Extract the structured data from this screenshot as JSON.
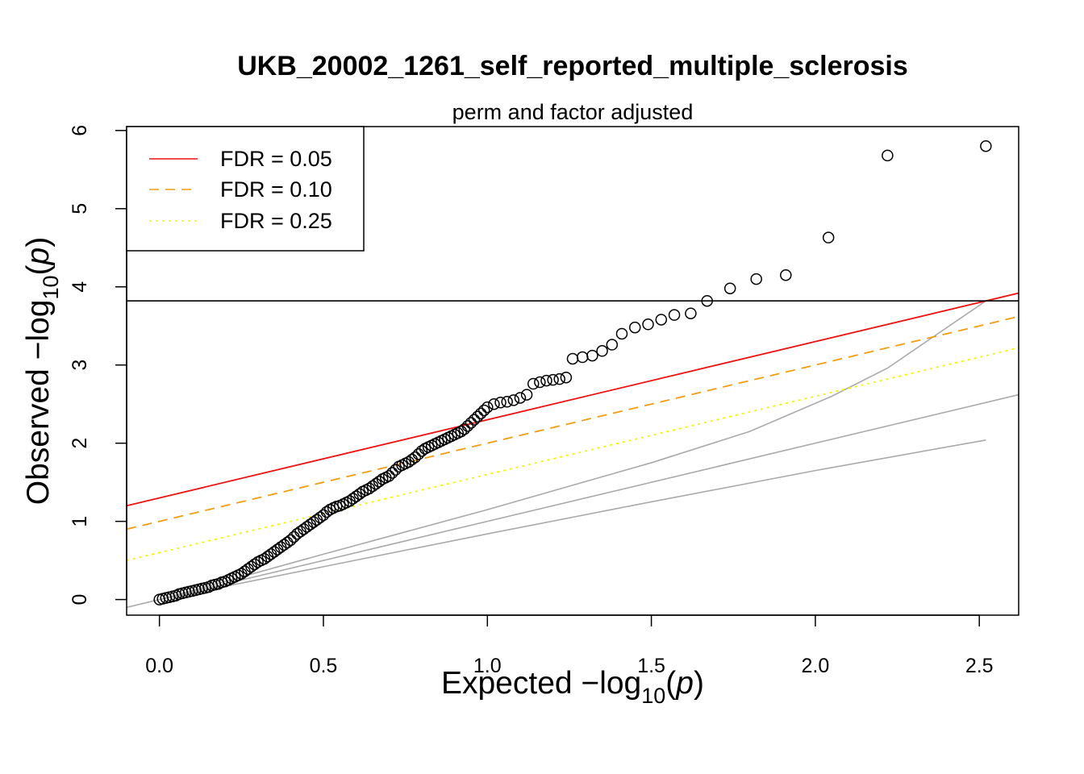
{
  "chart_data": {
    "type": "scatter",
    "title": "UKB_20002_1261_self_reported_multiple_sclerosis",
    "subtitle": "perm and factor adjusted",
    "xlabel": {
      "prefix": "Expected  −log",
      "sub": "10",
      "open": "(",
      "var": "p",
      "close": ")"
    },
    "ylabel": {
      "prefix": "Observed  −log",
      "sub": "10",
      "open": "(",
      "var": "p",
      "close": ")"
    },
    "xlim": [
      -0.1,
      2.62
    ],
    "ylim": [
      -0.2,
      6.05
    ],
    "xticks": [
      0.0,
      0.5,
      1.0,
      1.5,
      2.0,
      2.5
    ],
    "xtick_labels": [
      "0.0",
      "0.5",
      "1.0",
      "1.5",
      "2.0",
      "2.5"
    ],
    "yticks": [
      0,
      1,
      2,
      3,
      4,
      5,
      6
    ],
    "ytick_labels": [
      "0",
      "1",
      "2",
      "3",
      "4",
      "5",
      "6"
    ],
    "grid": false,
    "legend_position": "top-left",
    "legend": [
      {
        "label": "FDR = 0.05",
        "color": "#ee1111",
        "dash": "solid"
      },
      {
        "label": "FDR = 0.10",
        "color": "#f39c12",
        "dash": "dashed"
      },
      {
        "label": "FDR = 0.25",
        "color": "#f5f500",
        "dash": "dotted"
      }
    ],
    "hline": {
      "y": 3.82,
      "color": "#000000"
    },
    "fdr_lines": [
      {
        "label": "FDR = 0.05",
        "intercept": 1.3,
        "slope": 1.0,
        "color": "#ee1111",
        "dash": "solid"
      },
      {
        "label": "FDR = 0.10",
        "intercept": 1.0,
        "slope": 1.0,
        "color": "#f39c12",
        "dash": "dashed"
      },
      {
        "label": "FDR = 0.25",
        "intercept": 0.6,
        "slope": 1.0,
        "color": "#f5f500",
        "dash": "dotted"
      }
    ],
    "reference_lines": [
      {
        "name": "diagonal",
        "color": "#aaaaaa",
        "points": [
          [
            -0.1,
            -0.1
          ],
          [
            2.62,
            2.62
          ]
        ]
      },
      {
        "name": "upper-envelope",
        "color": "#aaaaaa",
        "points": [
          [
            0,
            0
          ],
          [
            0.5,
            0.58
          ],
          [
            1.0,
            1.15
          ],
          [
            1.5,
            1.75
          ],
          [
            1.8,
            2.15
          ],
          [
            2.05,
            2.6
          ],
          [
            2.22,
            2.96
          ],
          [
            2.52,
            3.82
          ]
        ]
      },
      {
        "name": "lower-envelope",
        "color": "#aaaaaa",
        "points": [
          [
            0,
            0
          ],
          [
            0.5,
            0.42
          ],
          [
            1.0,
            0.84
          ],
          [
            1.5,
            1.25
          ],
          [
            2.0,
            1.65
          ],
          [
            2.52,
            2.04
          ]
        ]
      }
    ],
    "series": [
      {
        "marker": "open-circle",
        "color": "#000000",
        "points": [
          [
            0.0,
            0.0
          ],
          [
            0.01,
            0.01
          ],
          [
            0.02,
            0.02
          ],
          [
            0.03,
            0.03
          ],
          [
            0.04,
            0.04
          ],
          [
            0.05,
            0.05
          ],
          [
            0.06,
            0.07
          ],
          [
            0.07,
            0.08
          ],
          [
            0.08,
            0.09
          ],
          [
            0.09,
            0.1
          ],
          [
            0.1,
            0.11
          ],
          [
            0.11,
            0.12
          ],
          [
            0.12,
            0.13
          ],
          [
            0.13,
            0.14
          ],
          [
            0.14,
            0.15
          ],
          [
            0.15,
            0.16
          ],
          [
            0.16,
            0.18
          ],
          [
            0.17,
            0.19
          ],
          [
            0.18,
            0.2
          ],
          [
            0.19,
            0.22
          ],
          [
            0.2,
            0.23
          ],
          [
            0.21,
            0.25
          ],
          [
            0.22,
            0.27
          ],
          [
            0.23,
            0.29
          ],
          [
            0.24,
            0.31
          ],
          [
            0.25,
            0.33
          ],
          [
            0.26,
            0.36
          ],
          [
            0.27,
            0.39
          ],
          [
            0.28,
            0.42
          ],
          [
            0.29,
            0.45
          ],
          [
            0.3,
            0.48
          ],
          [
            0.31,
            0.5
          ],
          [
            0.32,
            0.52
          ],
          [
            0.33,
            0.55
          ],
          [
            0.34,
            0.58
          ],
          [
            0.35,
            0.61
          ],
          [
            0.36,
            0.64
          ],
          [
            0.37,
            0.67
          ],
          [
            0.38,
            0.7
          ],
          [
            0.39,
            0.73
          ],
          [
            0.4,
            0.76
          ],
          [
            0.41,
            0.8
          ],
          [
            0.42,
            0.84
          ],
          [
            0.43,
            0.87
          ],
          [
            0.44,
            0.9
          ],
          [
            0.45,
            0.93
          ],
          [
            0.46,
            0.96
          ],
          [
            0.47,
            0.99
          ],
          [
            0.48,
            1.02
          ],
          [
            0.49,
            1.05
          ],
          [
            0.5,
            1.08
          ],
          [
            0.51,
            1.12
          ],
          [
            0.52,
            1.15
          ],
          [
            0.53,
            1.17
          ],
          [
            0.54,
            1.19
          ],
          [
            0.55,
            1.2
          ],
          [
            0.56,
            1.22
          ],
          [
            0.57,
            1.24
          ],
          [
            0.58,
            1.26
          ],
          [
            0.59,
            1.29
          ],
          [
            0.6,
            1.32
          ],
          [
            0.61,
            1.35
          ],
          [
            0.62,
            1.38
          ],
          [
            0.63,
            1.4
          ],
          [
            0.64,
            1.42
          ],
          [
            0.65,
            1.45
          ],
          [
            0.66,
            1.48
          ],
          [
            0.67,
            1.51
          ],
          [
            0.68,
            1.54
          ],
          [
            0.69,
            1.56
          ],
          [
            0.7,
            1.58
          ],
          [
            0.71,
            1.62
          ],
          [
            0.72,
            1.66
          ],
          [
            0.73,
            1.7
          ],
          [
            0.74,
            1.72
          ],
          [
            0.75,
            1.74
          ],
          [
            0.76,
            1.76
          ],
          [
            0.77,
            1.79
          ],
          [
            0.78,
            1.82
          ],
          [
            0.79,
            1.86
          ],
          [
            0.8,
            1.9
          ],
          [
            0.81,
            1.93
          ],
          [
            0.82,
            1.95
          ],
          [
            0.83,
            1.97
          ],
          [
            0.84,
            1.99
          ],
          [
            0.85,
            2.01
          ],
          [
            0.86,
            2.03
          ],
          [
            0.87,
            2.05
          ],
          [
            0.88,
            2.07
          ],
          [
            0.89,
            2.09
          ],
          [
            0.9,
            2.11
          ],
          [
            0.91,
            2.13
          ],
          [
            0.92,
            2.15
          ],
          [
            0.93,
            2.18
          ],
          [
            0.94,
            2.22
          ],
          [
            0.95,
            2.26
          ],
          [
            0.96,
            2.3
          ],
          [
            0.97,
            2.34
          ],
          [
            0.98,
            2.38
          ],
          [
            0.99,
            2.42
          ],
          [
            1.0,
            2.46
          ],
          [
            1.02,
            2.5
          ],
          [
            1.04,
            2.52
          ],
          [
            1.06,
            2.53
          ],
          [
            1.08,
            2.55
          ],
          [
            1.1,
            2.58
          ],
          [
            1.12,
            2.62
          ],
          [
            1.14,
            2.76
          ],
          [
            1.16,
            2.78
          ],
          [
            1.18,
            2.8
          ],
          [
            1.2,
            2.81
          ],
          [
            1.22,
            2.82
          ],
          [
            1.24,
            2.84
          ],
          [
            1.26,
            3.08
          ],
          [
            1.29,
            3.1
          ],
          [
            1.32,
            3.12
          ],
          [
            1.35,
            3.18
          ],
          [
            1.38,
            3.26
          ],
          [
            1.41,
            3.4
          ],
          [
            1.45,
            3.48
          ],
          [
            1.49,
            3.52
          ],
          [
            1.53,
            3.58
          ],
          [
            1.57,
            3.64
          ],
          [
            1.62,
            3.66
          ],
          [
            1.67,
            3.82
          ],
          [
            1.74,
            3.98
          ],
          [
            1.82,
            4.1
          ],
          [
            1.91,
            4.15
          ],
          [
            2.04,
            4.63
          ],
          [
            2.22,
            5.68
          ],
          [
            2.52,
            5.8
          ]
        ]
      }
    ]
  }
}
